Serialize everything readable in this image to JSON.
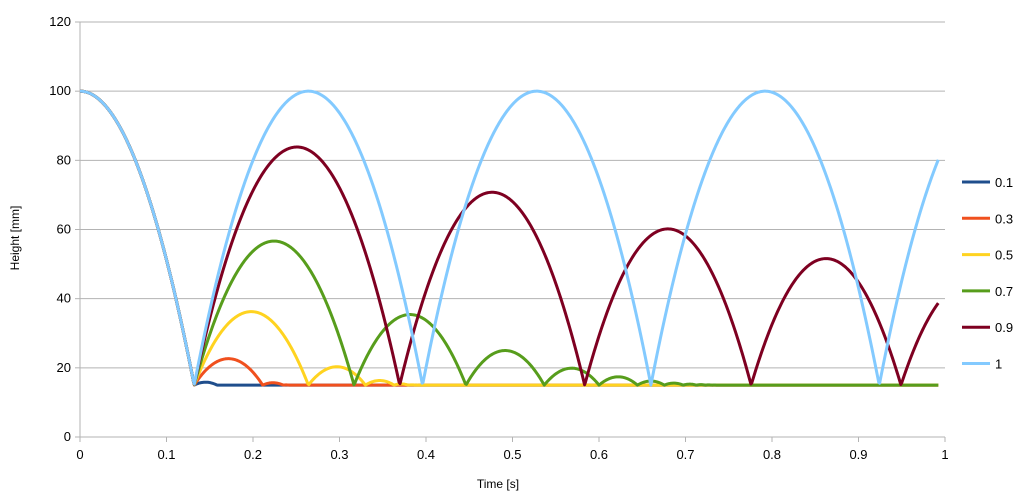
{
  "chart_data": {
    "type": "line",
    "title": "",
    "xlabel": "Time [s]",
    "ylabel": "Height [mm]",
    "xlim": [
      0,
      1
    ],
    "ylim": [
      0,
      120
    ],
    "xticks": [
      "0",
      "0.1",
      "0.2",
      "0.3",
      "0.4",
      "0.5",
      "0.6",
      "0.7",
      "0.8",
      "0.9",
      "1"
    ],
    "yticks": [
      "0",
      "20",
      "40",
      "60",
      "80",
      "100",
      "120"
    ],
    "grid": "horizontal",
    "legend_position": "right",
    "model": {
      "initial_height": 100,
      "floor_height": 15,
      "impact_time": 0.132,
      "bounce_rule": "bounce height above floor = e^2 * previous height above floor"
    },
    "series": [
      {
        "name": "0.1",
        "color": "#1f4e8c",
        "restitution": 0.1
      },
      {
        "name": "0.3",
        "color": "#f0501e",
        "restitution": 0.3
      },
      {
        "name": "0.5",
        "color": "#ffd320",
        "restitution": 0.5
      },
      {
        "name": "0.7",
        "color": "#579d1c",
        "restitution": 0.7
      },
      {
        "name": "0.9",
        "color": "#7e0021",
        "restitution": 0.9
      },
      {
        "name": "1",
        "color": "#83caff",
        "restitution": 1.0
      }
    ]
  }
}
